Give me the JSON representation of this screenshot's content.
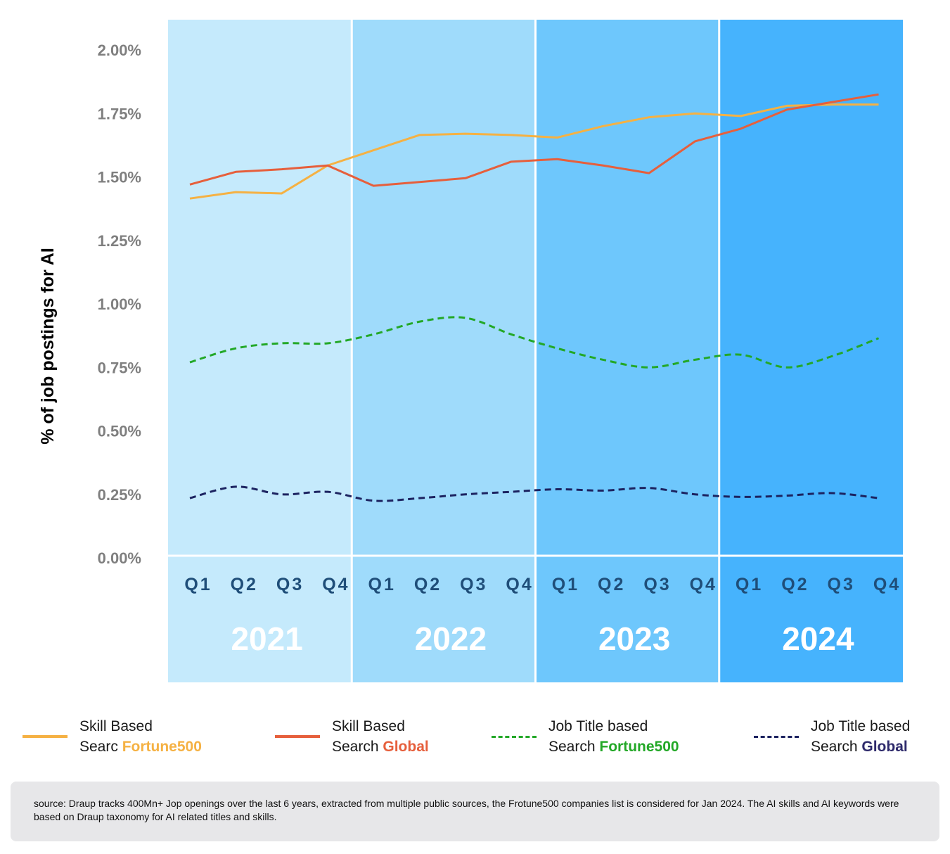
{
  "chart_data": {
    "type": "line",
    "title": "",
    "ylabel": "% of job postings for AI",
    "ylim": [
      0,
      2.0
    ],
    "yticks": [
      "0.00%",
      "0.25%",
      "0.50%",
      "0.75%",
      "1.00%",
      "1.25%",
      "1.50%",
      "1.75%",
      "2.00%"
    ],
    "years": [
      {
        "label": "2021",
        "color": "#c5eafc"
      },
      {
        "label": "2022",
        "color": "#9fdbfb"
      },
      {
        "label": "2023",
        "color": "#6ec7fc"
      },
      {
        "label": "2024",
        "color": "#46b3fd"
      }
    ],
    "quarters": [
      "Q1",
      "Q2",
      "Q3",
      "Q4"
    ],
    "series": [
      {
        "name": "Skill Based Search Fortune500",
        "color": "#f5b143",
        "dashed": false,
        "smooth": false,
        "values": [
          1.415,
          1.44,
          1.435,
          1.545,
          1.605,
          1.665,
          1.67,
          1.665,
          1.655,
          1.7,
          1.735,
          1.75,
          1.74,
          1.78,
          1.785,
          1.785
        ]
      },
      {
        "name": "Skill Based Search Global",
        "color": "#e65f3c",
        "dashed": false,
        "smooth": false,
        "values": [
          1.47,
          1.52,
          1.53,
          1.545,
          1.465,
          1.48,
          1.495,
          1.56,
          1.57,
          1.545,
          1.515,
          1.64,
          1.69,
          1.765,
          1.795,
          1.825
        ]
      },
      {
        "name": "Job Title based Search Fortune500",
        "color": "#23a827",
        "dashed": true,
        "smooth": true,
        "values": [
          0.77,
          0.825,
          0.845,
          0.845,
          0.88,
          0.93,
          0.945,
          0.88,
          0.825,
          0.78,
          0.75,
          0.78,
          0.8,
          0.75,
          0.795,
          0.865
        ]
      },
      {
        "name": "Job Title based Search Global",
        "color": "#1c2360",
        "dashed": true,
        "smooth": true,
        "values": [
          0.235,
          0.28,
          0.25,
          0.26,
          0.225,
          0.235,
          0.25,
          0.26,
          0.27,
          0.265,
          0.275,
          0.25,
          0.24,
          0.245,
          0.255,
          0.235
        ]
      }
    ]
  },
  "legend": [
    {
      "line1": "Skill Based",
      "line2_prefix": "Searc ",
      "line2_highlight": "Fortune500",
      "swatch_color": "#f5b143",
      "highlight_color": "#f5b143",
      "dashed": false
    },
    {
      "line1": "Skill Based",
      "line2_prefix": "Search ",
      "line2_highlight": "Global",
      "swatch_color": "#e65f3c",
      "highlight_color": "#e65f3c",
      "dashed": false
    },
    {
      "line1": "Job Title based",
      "line2_prefix": "Search ",
      "line2_highlight": "Fortune500",
      "swatch_color": "#23a827",
      "highlight_color": "#23a827",
      "dashed": true
    },
    {
      "line1": "Job Title based",
      "line2_prefix": "Search ",
      "line2_highlight": "Global",
      "swatch_color": "#1c2360",
      "highlight_color": "#2e2a6b",
      "dashed": true
    }
  ],
  "source_text": "source: Draup tracks 400Mn+ Jop openings over the last 6 years, extracted from multiple public sources, the Frotune500 companies list is considered for Jan 2024. The AI skills and AI keywords were based on Draup taxonomy for AI related titles and skills."
}
